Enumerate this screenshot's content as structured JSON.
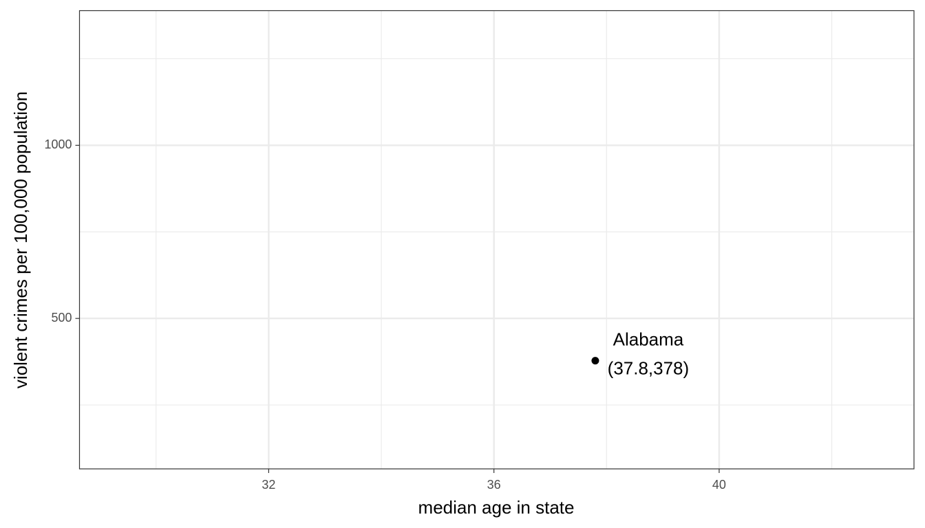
{
  "chart_data": {
    "type": "scatter",
    "x_label": "median age in state",
    "y_label": "violent crimes per 100,000 population",
    "x": [
      37.8
    ],
    "values": [
      378
    ],
    "point_labels": [
      "Alabama"
    ],
    "value_labels": [
      "(37.8,378)"
    ],
    "color": "#000000",
    "xlim": [
      28.64,
      43.46
    ],
    "xticks": [
      32,
      36,
      40
    ],
    "x_minor_ticks": [
      30,
      34,
      38,
      42
    ],
    "ylim": [
      65.5,
      1388.9
    ],
    "yticks": [
      500,
      1000
    ],
    "y_minor_ticks": [
      250,
      750,
      1250
    ],
    "grid": true
  }
}
